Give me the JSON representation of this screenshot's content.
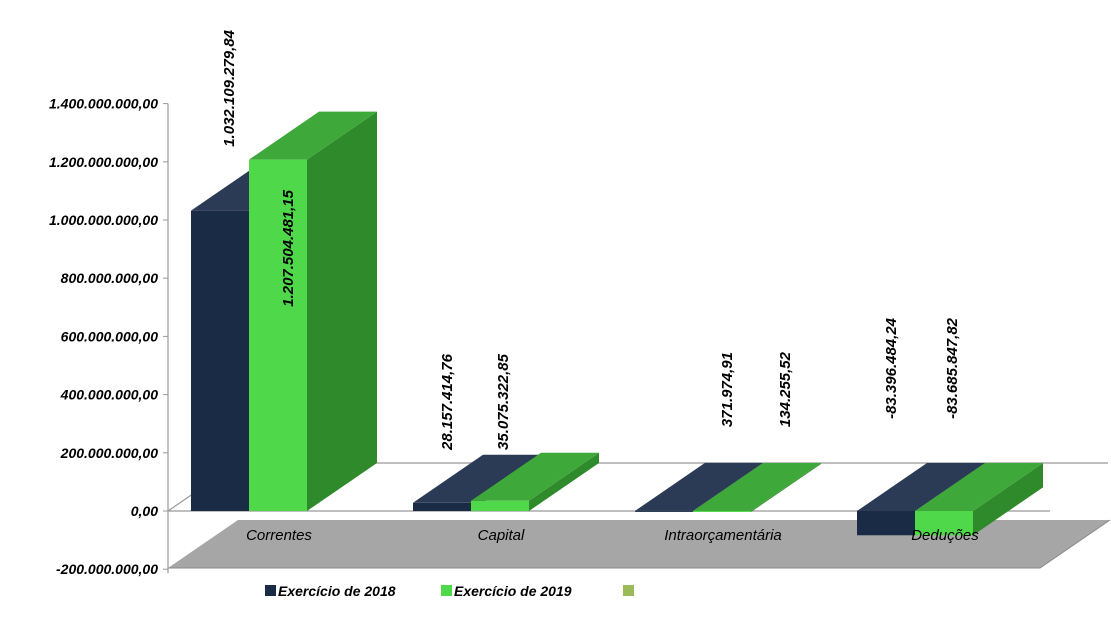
{
  "colors": {
    "series_2018_front": "#1a2b45",
    "series_2018_side": "#1e2e48",
    "series_2018_top": "#2b3a55",
    "series_2019_front": "#4fd84a",
    "series_2019_side": "#2f8a2b",
    "series_2019_top": "#3fa83a",
    "floor": "#a6a6a6",
    "third_legend": "#9bbb59"
  },
  "chart_data": {
    "type": "bar",
    "categories": [
      "Correntes",
      "Capital",
      "Intraorçamentária",
      "Deduções"
    ],
    "series": [
      {
        "name": "Exercício de 2018",
        "values": [
          1032109279.84,
          28157414.76,
          371974.91,
          -83396484.24
        ],
        "labels": [
          "1.032.109.279,84",
          "28.157.414,76",
          "371.974,91",
          "-83.396.484,24"
        ]
      },
      {
        "name": "Exercício de 2019",
        "values": [
          1207504481.15,
          35075322.85,
          134255.52,
          -83685847.82
        ],
        "labels": [
          "1.207.504.481,15",
          "35.075.322,85",
          "134.255,52",
          "-83.685.847,82"
        ]
      }
    ],
    "y_ticks": [
      {
        "value": 1400000000,
        "label": "1.400.000.000,00"
      },
      {
        "value": 1200000000,
        "label": "1.200.000.000,00"
      },
      {
        "value": 1000000000,
        "label": "1.000.000.000,00"
      },
      {
        "value": 800000000,
        "label": "800.000.000,00"
      },
      {
        "value": 600000000,
        "label": "600.000.000,00"
      },
      {
        "value": 400000000,
        "label": "400.000.000,00"
      },
      {
        "value": 200000000,
        "label": "200.000.000,00"
      },
      {
        "value": 0,
        "label": "0,00"
      },
      {
        "value": -200000000,
        "label": "-200.000.000,00"
      }
    ],
    "ylim": [
      -200000000,
      1400000000
    ],
    "legend_position": "bottom-left",
    "legend": [
      "Exercício de 2018",
      "Exercício de 2019",
      ""
    ]
  }
}
